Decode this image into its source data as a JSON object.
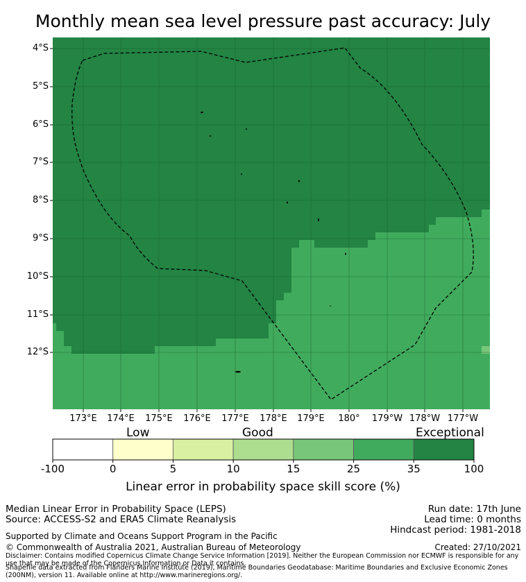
{
  "title": "Monthly mean sea level pressure past accuracy: July",
  "map": {
    "y_ticks": [
      "4°S",
      "5°S",
      "6°S",
      "7°S",
      "8°S",
      "9°S",
      "10°S",
      "11°S",
      "12°S"
    ],
    "x_ticks": [
      "173°E",
      "174°E",
      "175°E",
      "176°E",
      "177°E",
      "178°E",
      "179°E",
      "180°",
      "179°W",
      "178°W",
      "177°W"
    ],
    "colors": {
      "exceptional": "#238443",
      "very_good": "#41ab5d",
      "grid": "#17602f",
      "boundary": "#000000"
    }
  },
  "colorbar": {
    "categories": [
      "Low",
      "Good",
      "Exceptional"
    ],
    "ticks": [
      "-100",
      "0",
      "5",
      "10",
      "15",
      "25",
      "35",
      "100"
    ],
    "colors": [
      "#ffffff",
      "#ffffcc",
      "#d9f0a3",
      "#addd8e",
      "#78c679",
      "#41ab5d",
      "#238443"
    ],
    "label": "Linear error in probability space skill score (%)"
  },
  "footer": {
    "line1": "Median Linear Error in Probability Space (LEPS)",
    "line2": "Source: ACCESS-S2 and ERA5 Climate Reanalysis",
    "run_date": "Run date: 17th June",
    "lead_time": "Lead time: 0 months",
    "hindcast": "Hindcast period: 1981-2018",
    "support": "Supported by Climate and Oceans Support Program in the Pacific",
    "copyright": "© Commonwealth of Australia 2021, Australian Bureau of Meteorology",
    "created": "Created: 27/10/2021",
    "disclaimer": "Disclaimer: Contains modified Copernicus Climate Change Service Information [2019]. Neither the European Commission nor ECMWF is responsible for any use that may be made of the Copernicus Information or Data it contains.",
    "shapefile": "Shapefile data extracted from Flanders Marine Institute (2019), Maritime Boundaries Geodatabase: Maritime Boundaries and Exclusive Economic Zones (200NM), version 11. Available online at http://www.marineregions.org/."
  }
}
